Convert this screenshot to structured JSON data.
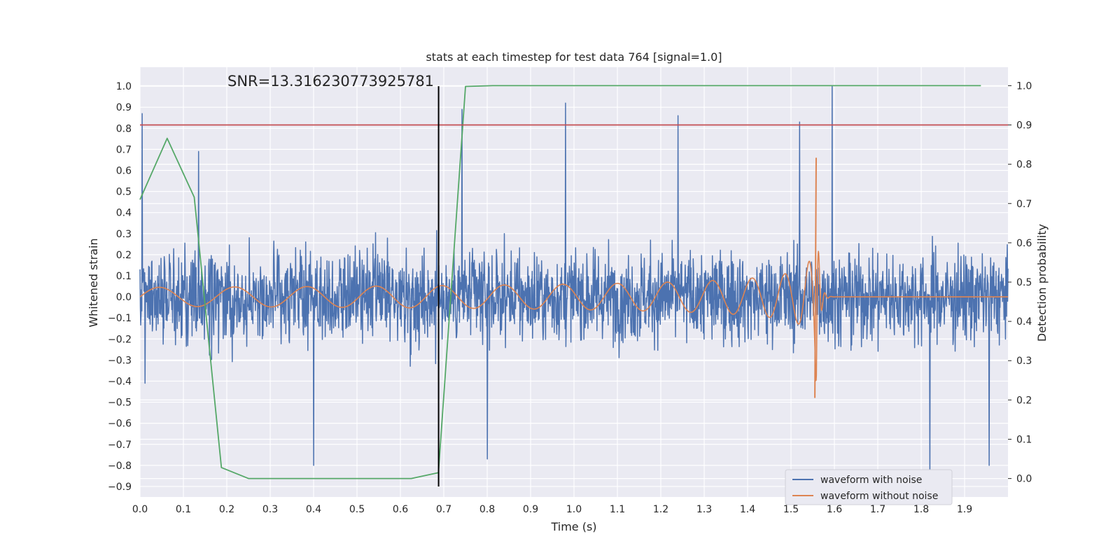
{
  "chart_data": {
    "type": "line",
    "title": "stats at each timestep for test data 764 [signal=1.0]",
    "xlabel": "Time (s)",
    "ylabel": "Whitened strain",
    "y2label": "Detection probability",
    "xlim": [
      0.0,
      2.0
    ],
    "ylim": [
      -0.95,
      1.09
    ],
    "y2lim": [
      -0.047,
      1.047
    ],
    "x_ticks": [
      0.0,
      0.1,
      0.2,
      0.3,
      0.4,
      0.5,
      0.6,
      0.7,
      0.8,
      0.9,
      1.0,
      1.1,
      1.2,
      1.3,
      1.4,
      1.5,
      1.6,
      1.7,
      1.8,
      1.9
    ],
    "x_tick_labels": [
      "0.0",
      "0.1",
      "0.2",
      "0.3",
      "0.4",
      "0.5",
      "0.6",
      "0.7",
      "0.8",
      "0.9",
      "1.0",
      "1.1",
      "1.2",
      "1.3",
      "1.4",
      "1.5",
      "1.6",
      "1.7",
      "1.8",
      "1.9"
    ],
    "y_ticks": [
      1.0,
      0.9,
      0.8,
      0.7,
      0.6,
      0.5,
      0.4,
      0.3,
      0.2,
      0.1,
      0.0,
      -0.1,
      -0.2,
      -0.3,
      -0.4,
      -0.5,
      -0.6,
      -0.7,
      -0.8,
      -0.9
    ],
    "y_tick_labels": [
      "1.0",
      "0.9",
      "0.8",
      "0.7",
      "0.6",
      "0.5",
      "0.4",
      "0.3",
      "0.2",
      "0.1",
      "0.0",
      "−0.1",
      "−0.2",
      "−0.3",
      "−0.4",
      "−0.5",
      "−0.6",
      "−0.7",
      "−0.8",
      "−0.9"
    ],
    "y2_ticks": [
      1.0,
      0.9,
      0.8,
      0.7,
      0.6,
      0.5,
      0.4,
      0.3,
      0.2,
      0.1,
      0.0
    ],
    "y2_tick_labels": [
      "1.0",
      "0.9",
      "0.8",
      "0.7",
      "0.6",
      "0.5",
      "0.4",
      "0.3",
      "0.2",
      "0.1",
      "0.0"
    ],
    "annotation": "SNR=13.316230773925781",
    "legend": {
      "placement": "lower-right",
      "entries": [
        {
          "label": "waveform with noise",
          "color": "#4c72b0"
        },
        {
          "label": "waveform without noise",
          "color": "#dd8452"
        }
      ]
    },
    "threshold": {
      "axis": "right",
      "value": 0.9,
      "color": "#c44e52"
    },
    "marker_line": {
      "x": 0.688,
      "y_range": [
        -0.9,
        1.0
      ],
      "color": "#000000"
    },
    "series": [
      {
        "name": "waveform with noise",
        "axis": "left",
        "color": "#4c72b0",
        "description": "dense noisy strain samples across 0 to 2 s, amplitude mostly within -0.5 to 0.5 with spikes",
        "spikes": [
          {
            "x": 0.005,
            "y": 0.87
          },
          {
            "x": 0.012,
            "y": -0.41
          },
          {
            "x": 0.135,
            "y": 0.69
          },
          {
            "x": 0.4,
            "y": -0.8
          },
          {
            "x": 0.742,
            "y": 0.89
          },
          {
            "x": 0.8,
            "y": -0.77
          },
          {
            "x": 0.98,
            "y": 0.92
          },
          {
            "x": 1.24,
            "y": 0.86
          },
          {
            "x": 1.52,
            "y": 0.83
          },
          {
            "x": 1.595,
            "y": 1.0
          },
          {
            "x": 1.82,
            "y": -0.89
          },
          {
            "x": 1.957,
            "y": -0.8
          }
        ]
      },
      {
        "name": "waveform without noise",
        "axis": "left",
        "color": "#dd8452",
        "description": "chirp signal with growing amplitude and frequency, merger peak near 1.56 s then ringdown to zero",
        "peak": {
          "x": 1.558,
          "y": 0.66
        },
        "trough": {
          "x": 1.555,
          "y": -0.48
        }
      },
      {
        "name": "detection probability",
        "axis": "right",
        "color": "#55a868",
        "x": [
          0.0,
          0.0625,
          0.125,
          0.1875,
          0.25,
          0.3125,
          0.375,
          0.4375,
          0.5,
          0.5625,
          0.625,
          0.6875,
          0.75,
          0.8125,
          0.875,
          0.9375,
          1.0,
          1.0625,
          1.125,
          1.1875,
          1.25,
          1.3125,
          1.375,
          1.4375,
          1.5,
          1.5625,
          1.625,
          1.6875,
          1.75,
          1.8125,
          1.875,
          1.9375
        ],
        "values": [
          0.71,
          0.866,
          0.716,
          0.028,
          0.0,
          0.0,
          0.0,
          0.0,
          0.0,
          0.0,
          0.0,
          0.015,
          0.998,
          1.0,
          1.0,
          1.0,
          1.0,
          1.0,
          1.0,
          1.0,
          1.0,
          1.0,
          1.0,
          1.0,
          1.0,
          1.0,
          1.0,
          1.0,
          1.0,
          1.0,
          1.0,
          1.0
        ]
      }
    ]
  }
}
